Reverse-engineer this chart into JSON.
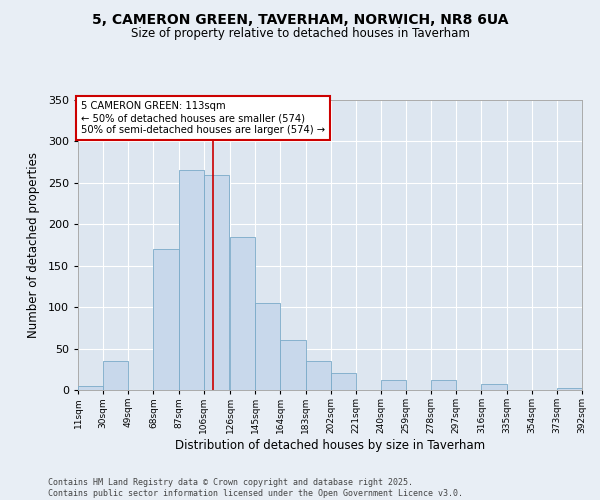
{
  "title_line1": "5, CAMERON GREEN, TAVERHAM, NORWICH, NR8 6UA",
  "title_line2": "Size of property relative to detached houses in Taverham",
  "xlabel": "Distribution of detached houses by size in Taverham",
  "ylabel": "Number of detached properties",
  "bar_color": "#c8d8eb",
  "bar_edge_color": "#7aaac8",
  "fig_bg_color": "#e8eef5",
  "ax_bg_color": "#dde6f0",
  "grid_color": "#ffffff",
  "bin_left_edges": [
    11,
    30,
    49,
    68,
    87,
    106,
    126,
    145,
    164,
    183,
    202,
    221,
    240,
    259,
    278,
    297,
    316,
    335,
    354,
    373
  ],
  "bin_labels": [
    "11sqm",
    "30sqm",
    "49sqm",
    "68sqm",
    "87sqm",
    "106sqm",
    "126sqm",
    "145sqm",
    "164sqm",
    "183sqm",
    "202sqm",
    "221sqm",
    "240sqm",
    "259sqm",
    "278sqm",
    "297sqm",
    "316sqm",
    "335sqm",
    "354sqm",
    "373sqm",
    "392sqm"
  ],
  "counts": [
    5,
    35,
    0,
    170,
    265,
    260,
    185,
    105,
    60,
    35,
    20,
    0,
    12,
    0,
    12,
    0,
    7,
    0,
    0,
    3
  ],
  "ylim": [
    0,
    350
  ],
  "yticks": [
    0,
    50,
    100,
    150,
    200,
    250,
    300,
    350
  ],
  "vline_x": 113,
  "annotation_text": "5 CAMERON GREEN: 113sqm\n← 50% of detached houses are smaller (574)\n50% of semi-detached houses are larger (574) →",
  "annotation_box_color": "#ffffff",
  "annotation_box_edge": "#cc0000",
  "vline_color": "#cc0000",
  "footer_line1": "Contains HM Land Registry data © Crown copyright and database right 2025.",
  "footer_line2": "Contains public sector information licensed under the Open Government Licence v3.0."
}
